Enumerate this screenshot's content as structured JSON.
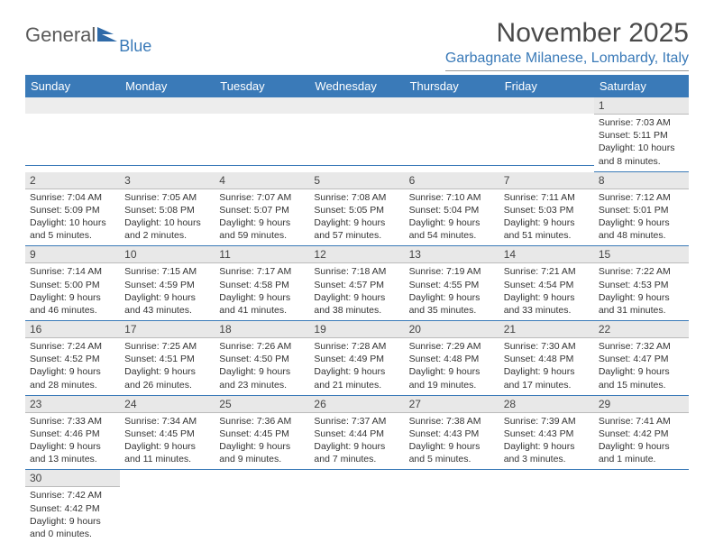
{
  "brand": {
    "word1": "General",
    "word2": "Blue"
  },
  "title": "November 2025",
  "subtitle": "Garbagnate Milanese, Lombardy, Italy",
  "colors": {
    "header_bg": "#3a7ab8",
    "header_text": "#ffffff",
    "daynum_bg": "#e8e8e8",
    "row_divider": "#3a7ab8",
    "text": "#333333",
    "title_color": "#4a4a4a",
    "subtitle_color": "#3a7ab8"
  },
  "days_of_week": [
    "Sunday",
    "Monday",
    "Tuesday",
    "Wednesday",
    "Thursday",
    "Friday",
    "Saturday"
  ],
  "weeks": [
    [
      {
        "empty": true
      },
      {
        "empty": true
      },
      {
        "empty": true
      },
      {
        "empty": true
      },
      {
        "empty": true
      },
      {
        "empty": true
      },
      {
        "day": "1",
        "sunrise": "7:03 AM",
        "sunset": "5:11 PM",
        "daylight": "10 hours and 8 minutes."
      }
    ],
    [
      {
        "day": "2",
        "sunrise": "7:04 AM",
        "sunset": "5:09 PM",
        "daylight": "10 hours and 5 minutes."
      },
      {
        "day": "3",
        "sunrise": "7:05 AM",
        "sunset": "5:08 PM",
        "daylight": "10 hours and 2 minutes."
      },
      {
        "day": "4",
        "sunrise": "7:07 AM",
        "sunset": "5:07 PM",
        "daylight": "9 hours and 59 minutes."
      },
      {
        "day": "5",
        "sunrise": "7:08 AM",
        "sunset": "5:05 PM",
        "daylight": "9 hours and 57 minutes."
      },
      {
        "day": "6",
        "sunrise": "7:10 AM",
        "sunset": "5:04 PM",
        "daylight": "9 hours and 54 minutes."
      },
      {
        "day": "7",
        "sunrise": "7:11 AM",
        "sunset": "5:03 PM",
        "daylight": "9 hours and 51 minutes."
      },
      {
        "day": "8",
        "sunrise": "7:12 AM",
        "sunset": "5:01 PM",
        "daylight": "9 hours and 48 minutes."
      }
    ],
    [
      {
        "day": "9",
        "sunrise": "7:14 AM",
        "sunset": "5:00 PM",
        "daylight": "9 hours and 46 minutes."
      },
      {
        "day": "10",
        "sunrise": "7:15 AM",
        "sunset": "4:59 PM",
        "daylight": "9 hours and 43 minutes."
      },
      {
        "day": "11",
        "sunrise": "7:17 AM",
        "sunset": "4:58 PM",
        "daylight": "9 hours and 41 minutes."
      },
      {
        "day": "12",
        "sunrise": "7:18 AM",
        "sunset": "4:57 PM",
        "daylight": "9 hours and 38 minutes."
      },
      {
        "day": "13",
        "sunrise": "7:19 AM",
        "sunset": "4:55 PM",
        "daylight": "9 hours and 35 minutes."
      },
      {
        "day": "14",
        "sunrise": "7:21 AM",
        "sunset": "4:54 PM",
        "daylight": "9 hours and 33 minutes."
      },
      {
        "day": "15",
        "sunrise": "7:22 AM",
        "sunset": "4:53 PM",
        "daylight": "9 hours and 31 minutes."
      }
    ],
    [
      {
        "day": "16",
        "sunrise": "7:24 AM",
        "sunset": "4:52 PM",
        "daylight": "9 hours and 28 minutes."
      },
      {
        "day": "17",
        "sunrise": "7:25 AM",
        "sunset": "4:51 PM",
        "daylight": "9 hours and 26 minutes."
      },
      {
        "day": "18",
        "sunrise": "7:26 AM",
        "sunset": "4:50 PM",
        "daylight": "9 hours and 23 minutes."
      },
      {
        "day": "19",
        "sunrise": "7:28 AM",
        "sunset": "4:49 PM",
        "daylight": "9 hours and 21 minutes."
      },
      {
        "day": "20",
        "sunrise": "7:29 AM",
        "sunset": "4:48 PM",
        "daylight": "9 hours and 19 minutes."
      },
      {
        "day": "21",
        "sunrise": "7:30 AM",
        "sunset": "4:48 PM",
        "daylight": "9 hours and 17 minutes."
      },
      {
        "day": "22",
        "sunrise": "7:32 AM",
        "sunset": "4:47 PM",
        "daylight": "9 hours and 15 minutes."
      }
    ],
    [
      {
        "day": "23",
        "sunrise": "7:33 AM",
        "sunset": "4:46 PM",
        "daylight": "9 hours and 13 minutes."
      },
      {
        "day": "24",
        "sunrise": "7:34 AM",
        "sunset": "4:45 PM",
        "daylight": "9 hours and 11 minutes."
      },
      {
        "day": "25",
        "sunrise": "7:36 AM",
        "sunset": "4:45 PM",
        "daylight": "9 hours and 9 minutes."
      },
      {
        "day": "26",
        "sunrise": "7:37 AM",
        "sunset": "4:44 PM",
        "daylight": "9 hours and 7 minutes."
      },
      {
        "day": "27",
        "sunrise": "7:38 AM",
        "sunset": "4:43 PM",
        "daylight": "9 hours and 5 minutes."
      },
      {
        "day": "28",
        "sunrise": "7:39 AM",
        "sunset": "4:43 PM",
        "daylight": "9 hours and 3 minutes."
      },
      {
        "day": "29",
        "sunrise": "7:41 AM",
        "sunset": "4:42 PM",
        "daylight": "9 hours and 1 minute."
      }
    ],
    [
      {
        "day": "30",
        "sunrise": "7:42 AM",
        "sunset": "4:42 PM",
        "daylight": "9 hours and 0 minutes."
      },
      {
        "empty": true
      },
      {
        "empty": true
      },
      {
        "empty": true
      },
      {
        "empty": true
      },
      {
        "empty": true
      },
      {
        "empty": true
      }
    ]
  ],
  "labels": {
    "sunrise_prefix": "Sunrise: ",
    "sunset_prefix": "Sunset: ",
    "daylight_prefix": "Daylight: "
  }
}
